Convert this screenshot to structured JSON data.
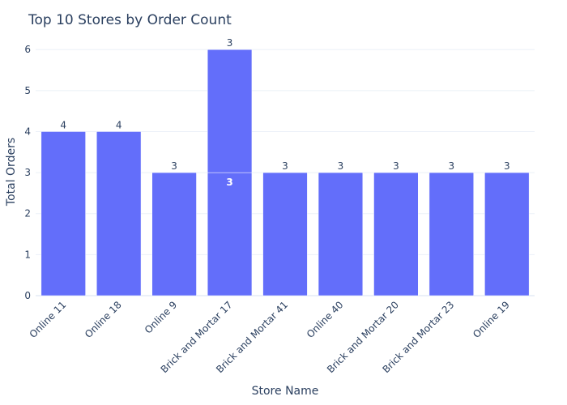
{
  "chart_data": {
    "type": "bar",
    "barmode": "stack",
    "title": "Top 10 Stores by Order Count",
    "xlabel": "Store Name",
    "ylabel": "Total Orders",
    "ylim": [
      0,
      6.3
    ],
    "yticks": [
      0,
      1,
      2,
      3,
      4,
      5,
      6
    ],
    "categories": [
      "Online 11",
      "Online 18",
      "Online 9",
      "Brick and Mortar 17",
      "Brick and Mortar 41",
      "Online 40",
      "Brick and Mortar 20",
      "Brick and Mortar 23",
      "Online 19"
    ],
    "segments": [
      [
        4
      ],
      [
        4
      ],
      [
        3
      ],
      [
        3,
        3
      ],
      [
        3
      ],
      [
        3
      ],
      [
        3
      ],
      [
        3
      ],
      [
        3
      ]
    ],
    "bar_color": "#636efa",
    "grid": true,
    "legend": "none"
  }
}
